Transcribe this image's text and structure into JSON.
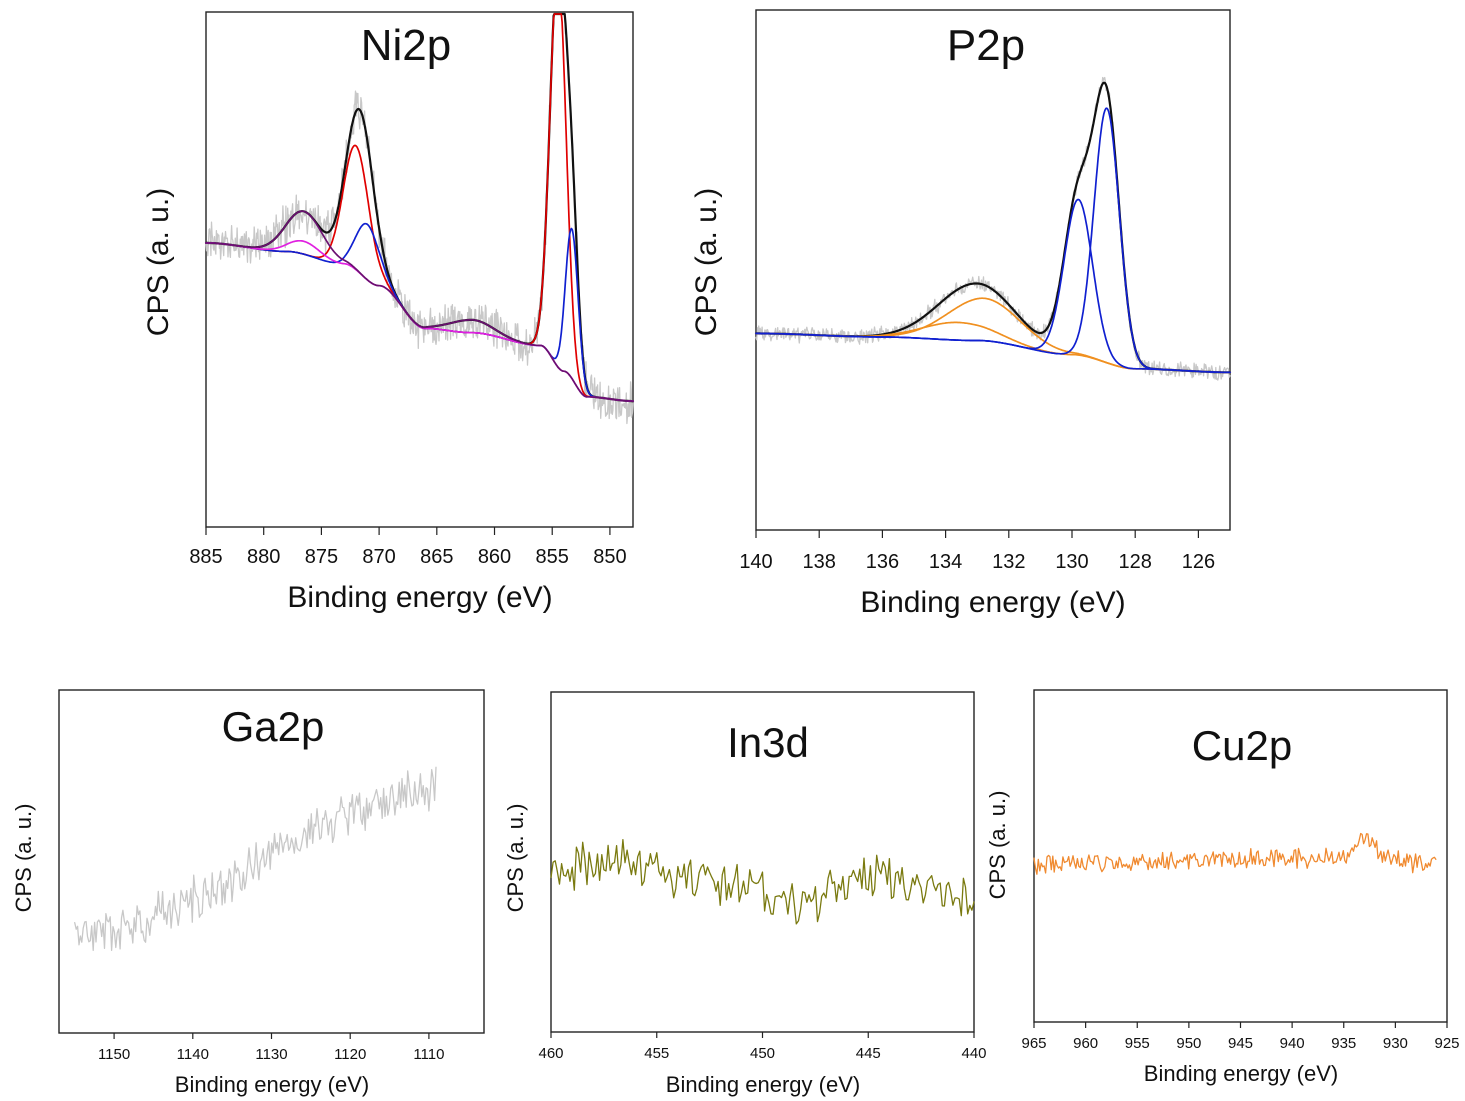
{
  "chart_data": [
    {
      "type": "line",
      "title": "Ni2p",
      "xlabel": "Binding energy (eV)",
      "ylabel": "CPS (a. u.)",
      "xlim": [
        885,
        848
      ],
      "ylim": [
        0,
        100
      ],
      "x_reversed": true,
      "xticks": [
        885,
        880,
        875,
        870,
        865,
        860,
        855,
        850
      ],
      "series": [
        {
          "color": "#c8c8c8",
          "raw": true,
          "noise": 4,
          "seed": 11,
          "kind": "data",
          "background": [
            [
              885,
              52
            ],
            [
              878,
              50
            ],
            [
              873,
              47
            ],
            [
              870,
              42
            ],
            [
              866,
              32
            ],
            [
              862,
              31
            ],
            [
              856,
              28
            ],
            [
              854,
              22
            ],
            [
              852,
              16
            ],
            [
              848,
              15
            ]
          ],
          "peaks": [
            [
              876.5,
              10,
              1.6
            ],
            [
              872,
              29,
              1.1
            ],
            [
              871,
              13,
              1.0
            ],
            [
              862,
              3,
              1.8
            ],
            [
              854.5,
              93,
              0.7
            ],
            [
              853.3,
              35,
              0.55
            ]
          ]
        },
        {
          "color": "#111111",
          "kind": "envelope",
          "background": [
            [
              885,
              52
            ],
            [
              878,
              50
            ],
            [
              873,
              47
            ],
            [
              870,
              42
            ],
            [
              866,
              32
            ],
            [
              862,
              31
            ],
            [
              856,
              28
            ],
            [
              854,
              22
            ],
            [
              852,
              16
            ],
            [
              848,
              15
            ]
          ],
          "peaks": [
            [
              876.5,
              10,
              1.6
            ],
            [
              872,
              29,
              1.1
            ],
            [
              871,
              13,
              1.0
            ],
            [
              862,
              3,
              1.8
            ],
            [
              854.5,
              93,
              0.7
            ],
            [
              853.3,
              35,
              0.55
            ]
          ]
        },
        {
          "color": "#e00000",
          "kind": "component",
          "background": [
            [
              885,
              52
            ],
            [
              878,
              50
            ],
            [
              873,
              47
            ],
            [
              870,
              42
            ],
            [
              866,
              32
            ],
            [
              862,
              31
            ],
            [
              856,
              28
            ],
            [
              854,
              22
            ],
            [
              852,
              16
            ],
            [
              848,
              15
            ]
          ],
          "peaks": [
            [
              872,
              29,
              1.1
            ],
            [
              854.5,
              93,
              0.7
            ]
          ]
        },
        {
          "color": "#1020d0",
          "kind": "component",
          "background": [
            [
              885,
              52
            ],
            [
              878,
              50
            ],
            [
              873,
              47
            ],
            [
              870,
              42
            ],
            [
              866,
              32
            ],
            [
              862,
              31
            ],
            [
              856,
              28
            ],
            [
              854,
              22
            ],
            [
              852,
              16
            ],
            [
              848,
              15
            ]
          ],
          "peaks": [
            [
              871,
              13,
              1.0
            ],
            [
              853.3,
              35,
              0.55
            ]
          ]
        },
        {
          "color": "#e020e0",
          "kind": "component",
          "background": [
            [
              885,
              52
            ],
            [
              878,
              50
            ],
            [
              873,
              47
            ],
            [
              870,
              42
            ],
            [
              866,
              32
            ],
            [
              862,
              31
            ],
            [
              856,
              28
            ],
            [
              854,
              22
            ],
            [
              852,
              16
            ],
            [
              848,
              15
            ]
          ],
          "peaks": [
            [
              876.5,
              3,
              1.4
            ]
          ]
        },
        {
          "color": "#6a1070",
          "kind": "component",
          "background": [
            [
              885,
              52
            ],
            [
              878,
              50
            ],
            [
              873,
              47
            ],
            [
              870,
              42
            ],
            [
              866,
              32
            ],
            [
              862,
              31
            ],
            [
              856,
              28
            ],
            [
              854,
              22
            ],
            [
              852,
              16
            ],
            [
              848,
              15
            ]
          ],
          "peaks": [
            [
              876.5,
              10,
              1.6
            ],
            [
              862,
              3,
              1.8
            ]
          ]
        }
      ]
    },
    {
      "type": "line",
      "title": "P2p",
      "xlabel": "Binding energy (eV)",
      "ylabel": "CPS (a. u.)",
      "xlim": [
        140,
        125
      ],
      "ylim": [
        0,
        100
      ],
      "x_reversed": true,
      "xticks": [
        140,
        138,
        136,
        134,
        132,
        130,
        128,
        126
      ],
      "series": [
        {
          "color": "#c8c8c8",
          "raw": true,
          "noise": 1.8,
          "seed": 23,
          "kind": "data",
          "background": [
            [
              140,
              35
            ],
            [
              136,
              34
            ],
            [
              133,
              33
            ],
            [
              130,
              29
            ],
            [
              128,
              25
            ],
            [
              125,
              24
            ]
          ],
          "peaks": [
            [
              133.6,
              5,
              1.1
            ],
            [
              132.8,
              12,
              1.15
            ],
            [
              129.8,
              44,
              0.45
            ],
            [
              128.9,
              72,
              0.4
            ]
          ]
        },
        {
          "color": "#111111",
          "kind": "envelope",
          "background": [
            [
              140,
              35
            ],
            [
              136,
              34
            ],
            [
              133,
              33
            ],
            [
              130,
              29
            ],
            [
              128,
              25
            ],
            [
              125,
              24
            ]
          ],
          "peaks": [
            [
              133.6,
              5,
              1.1
            ],
            [
              132.8,
              12,
              1.15
            ],
            [
              129.8,
              44,
              0.45
            ],
            [
              128.9,
              72,
              0.4
            ]
          ]
        },
        {
          "color": "#f09020",
          "kind": "component",
          "background": [
            [
              140,
              35
            ],
            [
              136,
              34
            ],
            [
              133,
              33
            ],
            [
              130,
              29
            ],
            [
              128,
              25
            ],
            [
              125,
              24
            ]
          ],
          "peaks": [
            [
              133.6,
              5,
              1.1
            ]
          ]
        },
        {
          "color": "#f09020",
          "kind": "component",
          "background": [
            [
              140,
              35
            ],
            [
              136,
              34
            ],
            [
              133,
              33
            ],
            [
              130,
              29
            ],
            [
              128,
              25
            ],
            [
              125,
              24
            ]
          ],
          "peaks": [
            [
              132.8,
              12,
              1.15
            ]
          ]
        },
        {
          "color": "#1020d0",
          "kind": "component",
          "background": [
            [
              140,
              35
            ],
            [
              136,
              34
            ],
            [
              133,
              33
            ],
            [
              130,
              29
            ],
            [
              128,
              25
            ],
            [
              125,
              24
            ]
          ],
          "peaks": [
            [
              129.8,
              44,
              0.45
            ]
          ]
        },
        {
          "color": "#1020d0",
          "kind": "component",
          "background": [
            [
              140,
              35
            ],
            [
              136,
              34
            ],
            [
              133,
              33
            ],
            [
              130,
              29
            ],
            [
              128,
              25
            ],
            [
              125,
              24
            ]
          ],
          "peaks": [
            [
              128.9,
              72,
              0.4
            ]
          ]
        }
      ]
    },
    {
      "type": "line",
      "title": "Ga2p",
      "xlabel": "Binding energy (eV)",
      "ylabel": "CPS (a. u.)",
      "xlim": [
        1157,
        1103
      ],
      "ylim": [
        0,
        100
      ],
      "x_reversed": true,
      "xticks": [
        1150,
        1140,
        1130,
        1120,
        1110
      ],
      "series": [
        {
          "color": "#c8c8c8",
          "raw": true,
          "noise": 7,
          "seed": 37,
          "kind": "data",
          "x_range": [
            1155,
            1109
          ],
          "step": 0.18,
          "background": [
            [
              1155,
              22
            ],
            [
              1109,
              77
            ]
          ],
          "peaks": []
        }
      ]
    },
    {
      "type": "line",
      "title": "In3d",
      "xlabel": "Binding energy (eV)",
      "ylabel": "CPS (a. u.)",
      "xlim": [
        460,
        440
      ],
      "ylim": [
        0,
        100
      ],
      "x_reversed": true,
      "xticks": [
        460,
        455,
        450,
        445,
        440
      ],
      "series": [
        {
          "color": "#7a7a10",
          "raw": true,
          "noise": 9,
          "seed": 53,
          "kind": "data",
          "x_range": [
            460,
            440
          ],
          "step": 0.1,
          "background": [
            [
              460,
              58
            ],
            [
              457,
              64
            ],
            [
              452,
              52
            ],
            [
              448,
              43
            ],
            [
              445,
              56
            ],
            [
              440,
              45
            ]
          ],
          "peaks": []
        }
      ]
    },
    {
      "type": "line",
      "title": "Cu2p",
      "xlabel": "Binding energy (eV)",
      "ylabel": "CPS (a. u.)",
      "xlim": [
        965,
        925
      ],
      "ylim": [
        0,
        100
      ],
      "x_reversed": true,
      "xticks": [
        965,
        960,
        955,
        950,
        945,
        940,
        935,
        930,
        925
      ],
      "series": [
        {
          "color": "#f08a30",
          "raw": true,
          "noise": 4.5,
          "seed": 71,
          "kind": "data",
          "x_range": [
            965,
            926
          ],
          "step": 0.14,
          "background": [
            [
              965,
              55
            ],
            [
              950,
              57
            ],
            [
              935,
              58
            ],
            [
              926,
              55
            ]
          ],
          "peaks": [
            [
              933,
              12,
              0.9
            ]
          ]
        }
      ]
    }
  ]
}
